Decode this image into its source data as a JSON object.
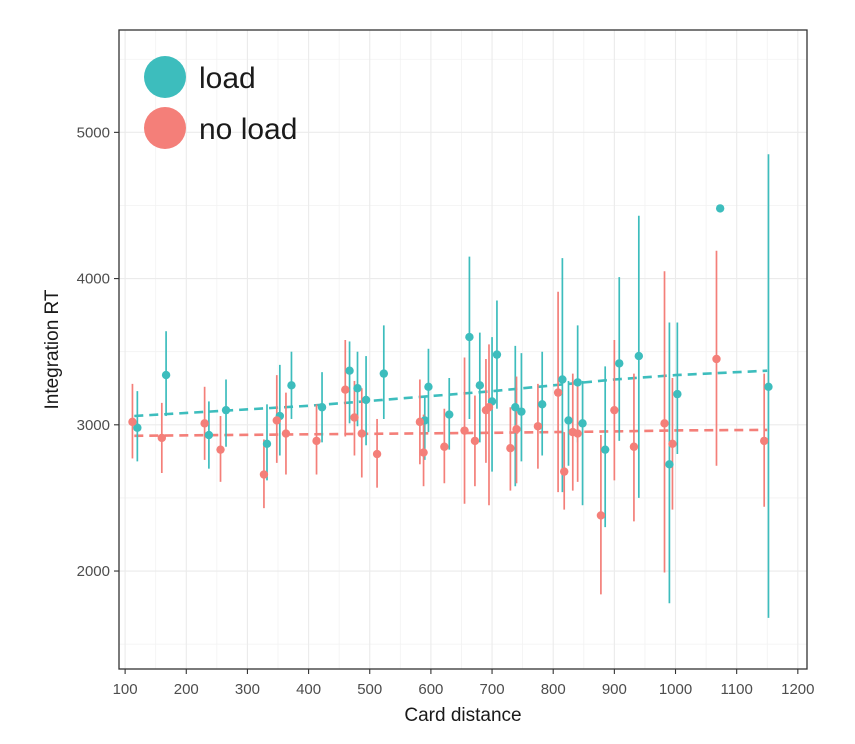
{
  "chart_data": {
    "type": "scatter",
    "xlabel": "Card distance",
    "ylabel": "Integration RT",
    "xlim": [
      90,
      1215
    ],
    "ylim": [
      1330,
      5700
    ],
    "x_ticks": [
      100,
      200,
      300,
      400,
      500,
      600,
      700,
      800,
      900,
      1000,
      1100,
      1200
    ],
    "y_ticks": [
      2000,
      3000,
      4000,
      5000
    ],
    "grid": true,
    "legend_position": "top-left",
    "series": [
      {
        "name": "load",
        "color": "#3DBDBD",
        "trend": [
          [
            115,
            3060
          ],
          [
            400,
            3130
          ],
          [
            700,
            3230
          ],
          [
            900,
            3310
          ],
          [
            1000,
            3340
          ],
          [
            1150,
            3370
          ]
        ],
        "points": [
          {
            "x": 120,
            "y": 2980,
            "lo": 2750,
            "hi": 3230
          },
          {
            "x": 167,
            "y": 3340,
            "lo": 3060,
            "hi": 3640
          },
          {
            "x": 237,
            "y": 2930,
            "lo": 2700,
            "hi": 3160
          },
          {
            "x": 265,
            "y": 3100,
            "lo": 2850,
            "hi": 3310
          },
          {
            "x": 332,
            "y": 2870,
            "lo": 2620,
            "hi": 3140
          },
          {
            "x": 353,
            "y": 3060,
            "lo": 2790,
            "hi": 3410
          },
          {
            "x": 372,
            "y": 3270,
            "lo": 3040,
            "hi": 3500
          },
          {
            "x": 422,
            "y": 3120,
            "lo": 2880,
            "hi": 3360
          },
          {
            "x": 467,
            "y": 3370,
            "lo": 3010,
            "hi": 3570
          },
          {
            "x": 480,
            "y": 3250,
            "lo": 2990,
            "hi": 3500
          },
          {
            "x": 494,
            "y": 3170,
            "lo": 2860,
            "hi": 3470
          },
          {
            "x": 523,
            "y": 3350,
            "lo": 3040,
            "hi": 3680
          },
          {
            "x": 590,
            "y": 3030,
            "lo": 2760,
            "hi": 3200
          },
          {
            "x": 596,
            "y": 3260,
            "lo": 2950,
            "hi": 3520
          },
          {
            "x": 630,
            "y": 3070,
            "lo": 2830,
            "hi": 3320
          },
          {
            "x": 663,
            "y": 3600,
            "lo": 3040,
            "hi": 4150
          },
          {
            "x": 680,
            "y": 3270,
            "lo": 2880,
            "hi": 3630
          },
          {
            "x": 700,
            "y": 3160,
            "lo": 2680,
            "hi": 3600
          },
          {
            "x": 708,
            "y": 3480,
            "lo": 3110,
            "hi": 3850
          },
          {
            "x": 738,
            "y": 3120,
            "lo": 2580,
            "hi": 3540
          },
          {
            "x": 748,
            "y": 3090,
            "lo": 2750,
            "hi": 3490
          },
          {
            "x": 782,
            "y": 3140,
            "lo": 2790,
            "hi": 3500
          },
          {
            "x": 815,
            "y": 3310,
            "lo": 2540,
            "hi": 4140
          },
          {
            "x": 825,
            "y": 3030,
            "lo": 2720,
            "hi": 3300
          },
          {
            "x": 840,
            "y": 3290,
            "lo": 2880,
            "hi": 3680
          },
          {
            "x": 848,
            "y": 3010,
            "lo": 2450,
            "hi": 3300
          },
          {
            "x": 885,
            "y": 2830,
            "lo": 2300,
            "hi": 3400
          },
          {
            "x": 908,
            "y": 3420,
            "lo": 2890,
            "hi": 4010
          },
          {
            "x": 940,
            "y": 3470,
            "lo": 2500,
            "hi": 4430
          },
          {
            "x": 990,
            "y": 2730,
            "lo": 1780,
            "hi": 3700
          },
          {
            "x": 1003,
            "y": 3210,
            "lo": 2800,
            "hi": 3700
          },
          {
            "x": 1073,
            "y": 4480,
            "lo": 4480,
            "hi": 4480
          },
          {
            "x": 1152,
            "y": 3260,
            "lo": 1680,
            "hi": 4850
          }
        ]
      },
      {
        "name": "no load",
        "color": "#F47F79",
        "trend": [
          [
            115,
            2925
          ],
          [
            400,
            2935
          ],
          [
            700,
            2945
          ],
          [
            900,
            2955
          ],
          [
            1000,
            2962
          ],
          [
            1150,
            2965
          ]
        ],
        "points": [
          {
            "x": 112,
            "y": 3020,
            "lo": 2770,
            "hi": 3280
          },
          {
            "x": 160,
            "y": 2910,
            "lo": 2670,
            "hi": 3150
          },
          {
            "x": 230,
            "y": 3010,
            "lo": 2760,
            "hi": 3260
          },
          {
            "x": 256,
            "y": 2830,
            "lo": 2610,
            "hi": 3060
          },
          {
            "x": 327,
            "y": 2660,
            "lo": 2430,
            "hi": 2900
          },
          {
            "x": 348,
            "y": 3030,
            "lo": 2740,
            "hi": 3340
          },
          {
            "x": 363,
            "y": 2940,
            "lo": 2660,
            "hi": 3220
          },
          {
            "x": 413,
            "y": 2890,
            "lo": 2660,
            "hi": 3140
          },
          {
            "x": 460,
            "y": 3240,
            "lo": 2920,
            "hi": 3580
          },
          {
            "x": 475,
            "y": 3050,
            "lo": 2790,
            "hi": 3300
          },
          {
            "x": 487,
            "y": 2940,
            "lo": 2640,
            "hi": 3250
          },
          {
            "x": 512,
            "y": 2800,
            "lo": 2570,
            "hi": 3040
          },
          {
            "x": 582,
            "y": 3020,
            "lo": 2730,
            "hi": 3310
          },
          {
            "x": 588,
            "y": 2810,
            "lo": 2580,
            "hi": 3070
          },
          {
            "x": 622,
            "y": 2850,
            "lo": 2600,
            "hi": 3110
          },
          {
            "x": 655,
            "y": 2960,
            "lo": 2460,
            "hi": 3460
          },
          {
            "x": 672,
            "y": 2890,
            "lo": 2580,
            "hi": 3200
          },
          {
            "x": 690,
            "y": 3100,
            "lo": 2740,
            "hi": 3450
          },
          {
            "x": 695,
            "y": 3120,
            "lo": 2450,
            "hi": 3550
          },
          {
            "x": 730,
            "y": 2840,
            "lo": 2550,
            "hi": 3120
          },
          {
            "x": 740,
            "y": 2970,
            "lo": 2600,
            "hi": 3330
          },
          {
            "x": 775,
            "y": 2990,
            "lo": 2700,
            "hi": 3280
          },
          {
            "x": 808,
            "y": 3220,
            "lo": 2540,
            "hi": 3910
          },
          {
            "x": 818,
            "y": 2680,
            "lo": 2420,
            "hi": 2950
          },
          {
            "x": 832,
            "y": 2950,
            "lo": 2550,
            "hi": 3350
          },
          {
            "x": 840,
            "y": 2940,
            "lo": 2610,
            "hi": 3280
          },
          {
            "x": 878,
            "y": 2380,
            "lo": 1840,
            "hi": 2930
          },
          {
            "x": 900,
            "y": 3100,
            "lo": 2620,
            "hi": 3580
          },
          {
            "x": 932,
            "y": 2850,
            "lo": 2340,
            "hi": 3350
          },
          {
            "x": 982,
            "y": 3010,
            "lo": 1990,
            "hi": 4050
          },
          {
            "x": 995,
            "y": 2870,
            "lo": 2420,
            "hi": 3320
          },
          {
            "x": 1067,
            "y": 3450,
            "lo": 2720,
            "hi": 4190
          },
          {
            "x": 1145,
            "y": 2890,
            "lo": 2440,
            "hi": 3350
          }
        ]
      }
    ]
  }
}
